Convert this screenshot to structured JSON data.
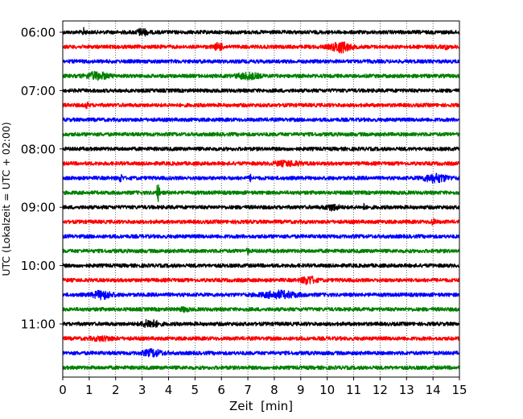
{
  "chart_data": {
    "type": "line",
    "title": "",
    "xlabel": "Zeit  [min]",
    "ylabel": "UTC (Lokalzeit = UTC + 02:00)",
    "xlim": [
      0,
      15
    ],
    "x_ticks": [
      "0",
      "1",
      "2",
      "3",
      "4",
      "5",
      "6",
      "7",
      "8",
      "9",
      "10",
      "11",
      "12",
      "13",
      "14",
      "15"
    ],
    "y_tick_labels": [
      "06:00",
      "07:00",
      "08:00",
      "09:00",
      "10:00",
      "11:00"
    ],
    "grid": "vertical dotted",
    "trace_interval_minutes": 15,
    "start_time": "06:00",
    "colors": [
      "#000000",
      "#ff0000",
      "#0000ff",
      "#008000"
    ],
    "traces": [
      {
        "start": "06:00",
        "color": "#000000",
        "events": [
          {
            "t": 0.8,
            "amp": 1.2,
            "dur": 0.1
          },
          {
            "t": 3.0,
            "amp": 1.1,
            "dur": 0.4
          }
        ]
      },
      {
        "start": "06:15",
        "color": "#ff0000",
        "events": [
          {
            "t": 5.9,
            "amp": 1.3,
            "dur": 0.3
          },
          {
            "t": 10.5,
            "amp": 1.8,
            "dur": 0.7
          },
          {
            "t": 14.5,
            "amp": 0.8,
            "dur": 0.1
          }
        ]
      },
      {
        "start": "06:30",
        "color": "#0000ff",
        "events": []
      },
      {
        "start": "06:45",
        "color": "#008000",
        "events": [
          {
            "t": 1.3,
            "amp": 1.2,
            "dur": 0.8
          },
          {
            "t": 7.0,
            "amp": 1.0,
            "dur": 0.8
          }
        ]
      },
      {
        "start": "07:00",
        "color": "#000000",
        "events": []
      },
      {
        "start": "07:15",
        "color": "#ff0000",
        "events": [
          {
            "t": 0.9,
            "amp": 1.2,
            "dur": 0.08
          }
        ]
      },
      {
        "start": "07:30",
        "color": "#0000ff",
        "events": []
      },
      {
        "start": "07:45",
        "color": "#008000",
        "events": []
      },
      {
        "start": "08:00",
        "color": "#000000",
        "events": []
      },
      {
        "start": "08:15",
        "color": "#ff0000",
        "events": [
          {
            "t": 8.5,
            "amp": 0.7,
            "dur": 1.0
          }
        ]
      },
      {
        "start": "08:30",
        "color": "#0000ff",
        "events": [
          {
            "t": 2.2,
            "amp": 1.6,
            "dur": 0.08
          },
          {
            "t": 7.1,
            "amp": 0.9,
            "dur": 0.08
          },
          {
            "t": 14.1,
            "amp": 1.3,
            "dur": 0.9
          }
        ]
      },
      {
        "start": "08:45",
        "color": "#008000",
        "events": [
          {
            "t": 3.6,
            "amp": 3.2,
            "dur": 0.12
          }
        ]
      },
      {
        "start": "09:00",
        "color": "#000000",
        "events": [
          {
            "t": 10.2,
            "amp": 0.9,
            "dur": 0.5
          },
          {
            "t": 11.4,
            "amp": 0.9,
            "dur": 0.08
          }
        ]
      },
      {
        "start": "09:15",
        "color": "#ff0000",
        "events": [
          {
            "t": 6.6,
            "amp": 0.8,
            "dur": 0.1
          },
          {
            "t": 14.0,
            "amp": 0.7,
            "dur": 0.2
          }
        ]
      },
      {
        "start": "09:30",
        "color": "#0000ff",
        "events": []
      },
      {
        "start": "09:45",
        "color": "#008000",
        "events": [
          {
            "t": 7.0,
            "amp": 0.9,
            "dur": 0.1
          }
        ]
      },
      {
        "start": "10:00",
        "color": "#000000",
        "events": []
      },
      {
        "start": "10:15",
        "color": "#ff0000",
        "events": [
          {
            "t": 9.3,
            "amp": 1.3,
            "dur": 0.5
          }
        ]
      },
      {
        "start": "10:30",
        "color": "#0000ff",
        "events": [
          {
            "t": 1.5,
            "amp": 1.3,
            "dur": 0.7
          },
          {
            "t": 8.2,
            "amp": 1.1,
            "dur": 1.3
          }
        ]
      },
      {
        "start": "10:45",
        "color": "#008000",
        "events": [
          {
            "t": 4.6,
            "amp": 0.6,
            "dur": 0.3
          }
        ]
      },
      {
        "start": "11:00",
        "color": "#000000",
        "events": [
          {
            "t": 3.3,
            "amp": 1.3,
            "dur": 0.6
          }
        ]
      },
      {
        "start": "11:15",
        "color": "#ff0000",
        "events": [
          {
            "t": 1.5,
            "amp": 0.6,
            "dur": 0.8
          }
        ]
      },
      {
        "start": "11:30",
        "color": "#0000ff",
        "events": [
          {
            "t": 3.4,
            "amp": 1.1,
            "dur": 0.7
          }
        ]
      },
      {
        "start": "11:45",
        "color": "#008000",
        "events": []
      }
    ]
  }
}
